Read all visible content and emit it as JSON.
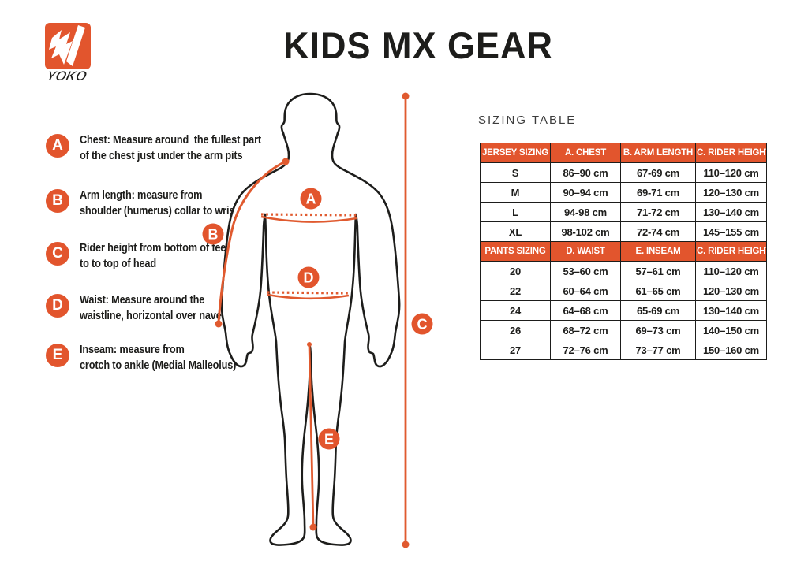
{
  "colors": {
    "accent": "#e2552d",
    "ink": "#1d1d1b",
    "line_orange": "#e05a2f"
  },
  "header": {
    "title": "KIDS MX GEAR",
    "brand": "YOKO"
  },
  "measurement_guide": {
    "items": [
      {
        "letter": "A",
        "line1": "Chest: Measure around  the fullest part",
        "line2": "of the chest just under the arm pits"
      },
      {
        "letter": "B",
        "line1": "Arm length: measure from",
        "line2": "shoulder (humerus) collar to wrist"
      },
      {
        "letter": "C",
        "line1": "Rider height from bottom of feet",
        "line2": "to to top of head"
      },
      {
        "letter": "D",
        "line1": "Waist: Measure around the",
        "line2": "waistline, horizontal over navel"
      },
      {
        "letter": "E",
        "line1": "Inseam: measure from",
        "line2": "crotch to ankle (Medial Malleolus)"
      }
    ]
  },
  "diagram": {
    "markers": {
      "a": "A",
      "b": "B",
      "c": "C",
      "d": "D",
      "e": "E"
    }
  },
  "sizing_table": {
    "label": "SIZING TABLE",
    "sections": [
      {
        "name": "jersey",
        "headers": [
          "JERSEY SIZING",
          "A. CHEST",
          "B. ARM LENGTH",
          "C. RIDER HEIGHT"
        ],
        "rows": [
          [
            "S",
            "86–90 cm",
            "67-69 cm",
            "110–120 cm"
          ],
          [
            "M",
            "90–94 cm",
            "69-71 cm",
            "120–130 cm"
          ],
          [
            "L",
            "94-98 cm",
            "71-72 cm",
            "130–140 cm"
          ],
          [
            "XL",
            "98-102 cm",
            "72-74 cm",
            "145–155 cm"
          ]
        ]
      },
      {
        "name": "pants",
        "headers": [
          "PANTS SIZING",
          "D. WAIST",
          "E. INSEAM",
          "C. RIDER HEIGHT"
        ],
        "rows": [
          [
            "20",
            "53–60 cm",
            "57–61 cm",
            "110–120 cm"
          ],
          [
            "22",
            "60–64 cm",
            "61–65 cm",
            "120–130 cm"
          ],
          [
            "24",
            "64–68 cm",
            "65-69 cm",
            "130–140 cm"
          ],
          [
            "26",
            "68–72 cm",
            "69–73 cm",
            "140–150 cm"
          ],
          [
            "27",
            "72–76 cm",
            "73–77 cm",
            "150–160 cm"
          ]
        ]
      }
    ]
  }
}
